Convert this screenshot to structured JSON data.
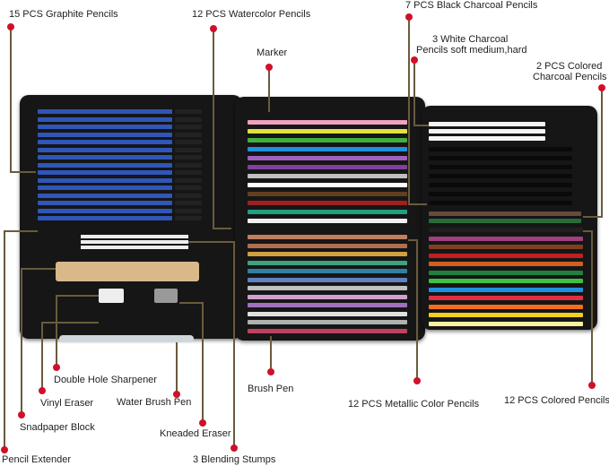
{
  "labels": {
    "graphite": "15 PCS Graphite Pencils",
    "watercolor": "12 PCS Watercolor Pencils",
    "marker": "Marker",
    "black_charcoal": "7 PCS Black Charcoal Pencils",
    "white_charcoal_1": "3 White Charcoal",
    "white_charcoal_2": "Pencils soft medium,hard",
    "colored_charcoal_1": "2 PCS Colored",
    "colored_charcoal_2": "Charcoal Pencils",
    "colored_pencils": "12 PCS Colored Pencils",
    "metallic": "12 PCS Metallic Color Pencils",
    "brush_pen": "Brush Pen",
    "sharpener": "Double Hole Sharpener",
    "vinyl_eraser": "Vinyl Eraser",
    "water_brush": "Water Brush Pen",
    "sandpaper": "Snadpaper Block",
    "kneaded_eraser": "Kneaded Eraser",
    "extender": "Pencil Extender",
    "stumps": "3 Blending Stumps"
  },
  "colors": {
    "dot": "#d0102a",
    "leader": "#6b5a3e",
    "case": "#161616",
    "graphite_pencil": "#2f56b8",
    "watercolor": [
      "#f0a0c0",
      "#e0e040",
      "#40b040",
      "#2090e0",
      "#a060c0",
      "#8040a0",
      "#c0c0c0",
      "#ffffff",
      "#604020",
      "#a02020",
      "#20a080",
      "#f0f0f0"
    ],
    "metallic": [
      "#c08060",
      "#b07050",
      "#d0a040",
      "#40a080",
      "#3080a0",
      "#6080c0",
      "#c0c0c0",
      "#d0a0d0",
      "#a070c0",
      "#e0e0e0",
      "#b0b0b0",
      "#c04060"
    ],
    "colored": [
      "#202020",
      "#a04080",
      "#804020",
      "#c02020",
      "#d06020",
      "#208040",
      "#40c040",
      "#2090e0",
      "#e03040",
      "#f07020",
      "#f0d020",
      "#fff0a0"
    ]
  }
}
